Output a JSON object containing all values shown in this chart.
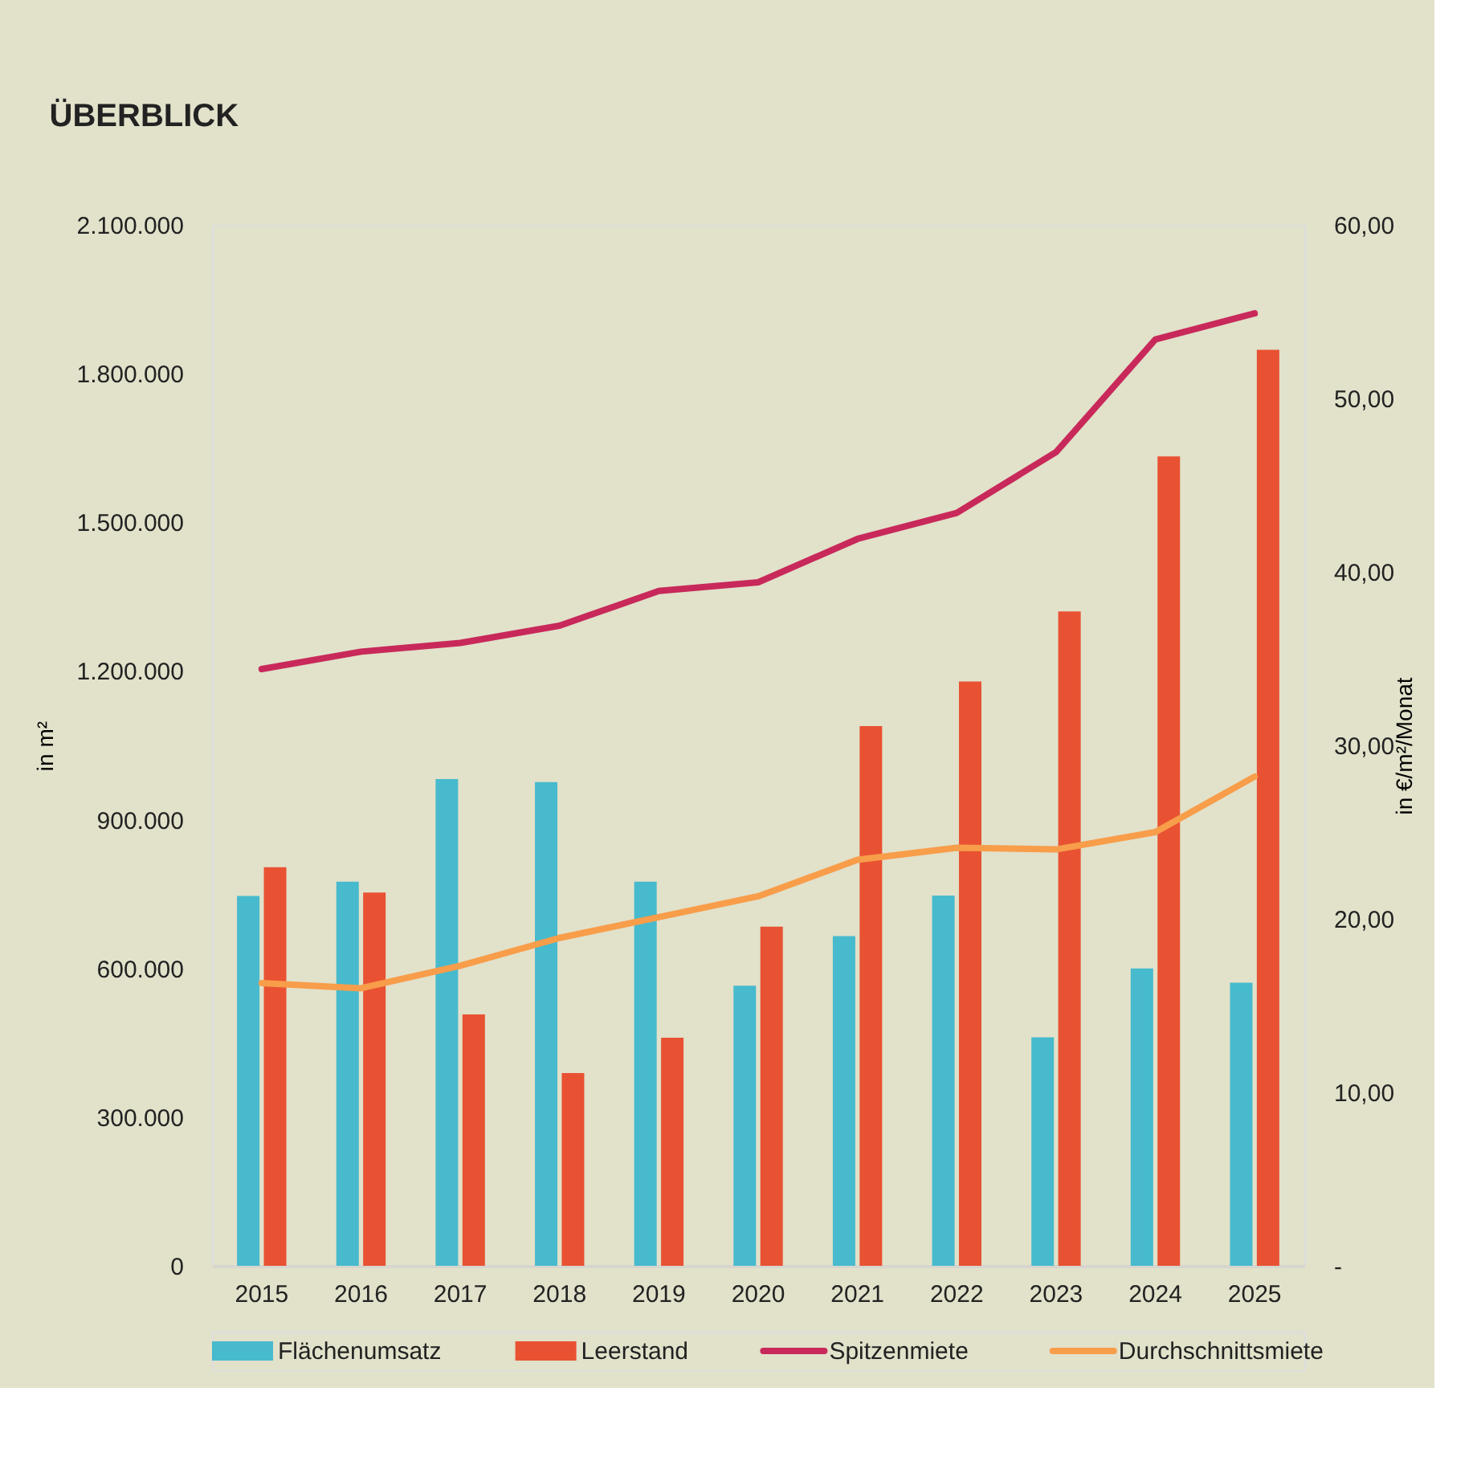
{
  "chart_data": {
    "type": "bar",
    "title": "ÜBERBLICK",
    "ylabel": "in m²",
    "y2label": "in €/m²/Monat",
    "categories": [
      "2015",
      "2016",
      "2017",
      "2018",
      "2019",
      "2020",
      "2021",
      "2022",
      "2023",
      "2024",
      "2025"
    ],
    "series": [
      {
        "name": "Flächenumsatz",
        "color": "#47bacd",
        "values": [
          746000,
          775000,
          982000,
          976000,
          775000,
          565000,
          665000,
          747000,
          461000,
          600000,
          571000
        ]
      },
      {
        "name": "Leerstand",
        "color": "#e85232",
        "values": [
          804000,
          753000,
          507000,
          389000,
          460000,
          684000,
          1089000,
          1179000,
          1320000,
          1633000,
          1848000
        ]
      },
      {
        "name": "Spitzenmiete",
        "type": "line",
        "axis": "y2",
        "color": "#c8295a",
        "values": [
          34.4,
          35.4,
          35.9,
          36.9,
          38.9,
          39.4,
          41.9,
          43.4,
          46.9,
          53.4,
          54.9
        ]
      },
      {
        "name": "Durchschnittsmiete",
        "type": "line",
        "axis": "y2",
        "color": "#f89d4a",
        "values": [
          16.3,
          16.0,
          17.3,
          18.9,
          20.1,
          21.3,
          23.4,
          24.1,
          24.0,
          25.0,
          28.2
        ]
      }
    ],
    "ylim": [
      0,
      2100000
    ],
    "yticks": [
      0,
      {
        "value": 300000,
        "label": "300.000"
      },
      {
        "value": 600000,
        "label": "600.000"
      },
      {
        "value": 900000,
        "label": "900.000"
      },
      {
        "value": 1200000,
        "label": "1.200.000"
      },
      {
        "value": 1500000,
        "label": "1.500.000"
      },
      {
        "value": 1800000,
        "label": "1.800.000"
      },
      {
        "value": 2100000,
        "label": "2.100.000"
      }
    ],
    "y2lim": [
      0,
      60
    ],
    "y2ticks": [
      {
        "value": 0,
        "label": "-"
      },
      {
        "value": 10,
        "label": "10,00"
      },
      {
        "value": 20,
        "label": "20,00"
      },
      {
        "value": 30,
        "label": "30,00"
      },
      {
        "value": 40,
        "label": "40,00"
      },
      {
        "value": 50,
        "label": "50,00"
      },
      {
        "value": 60,
        "label": "60,00"
      }
    ],
    "grid": false,
    "legend": "bottom",
    "line_style": "solid",
    "marker": "none"
  }
}
